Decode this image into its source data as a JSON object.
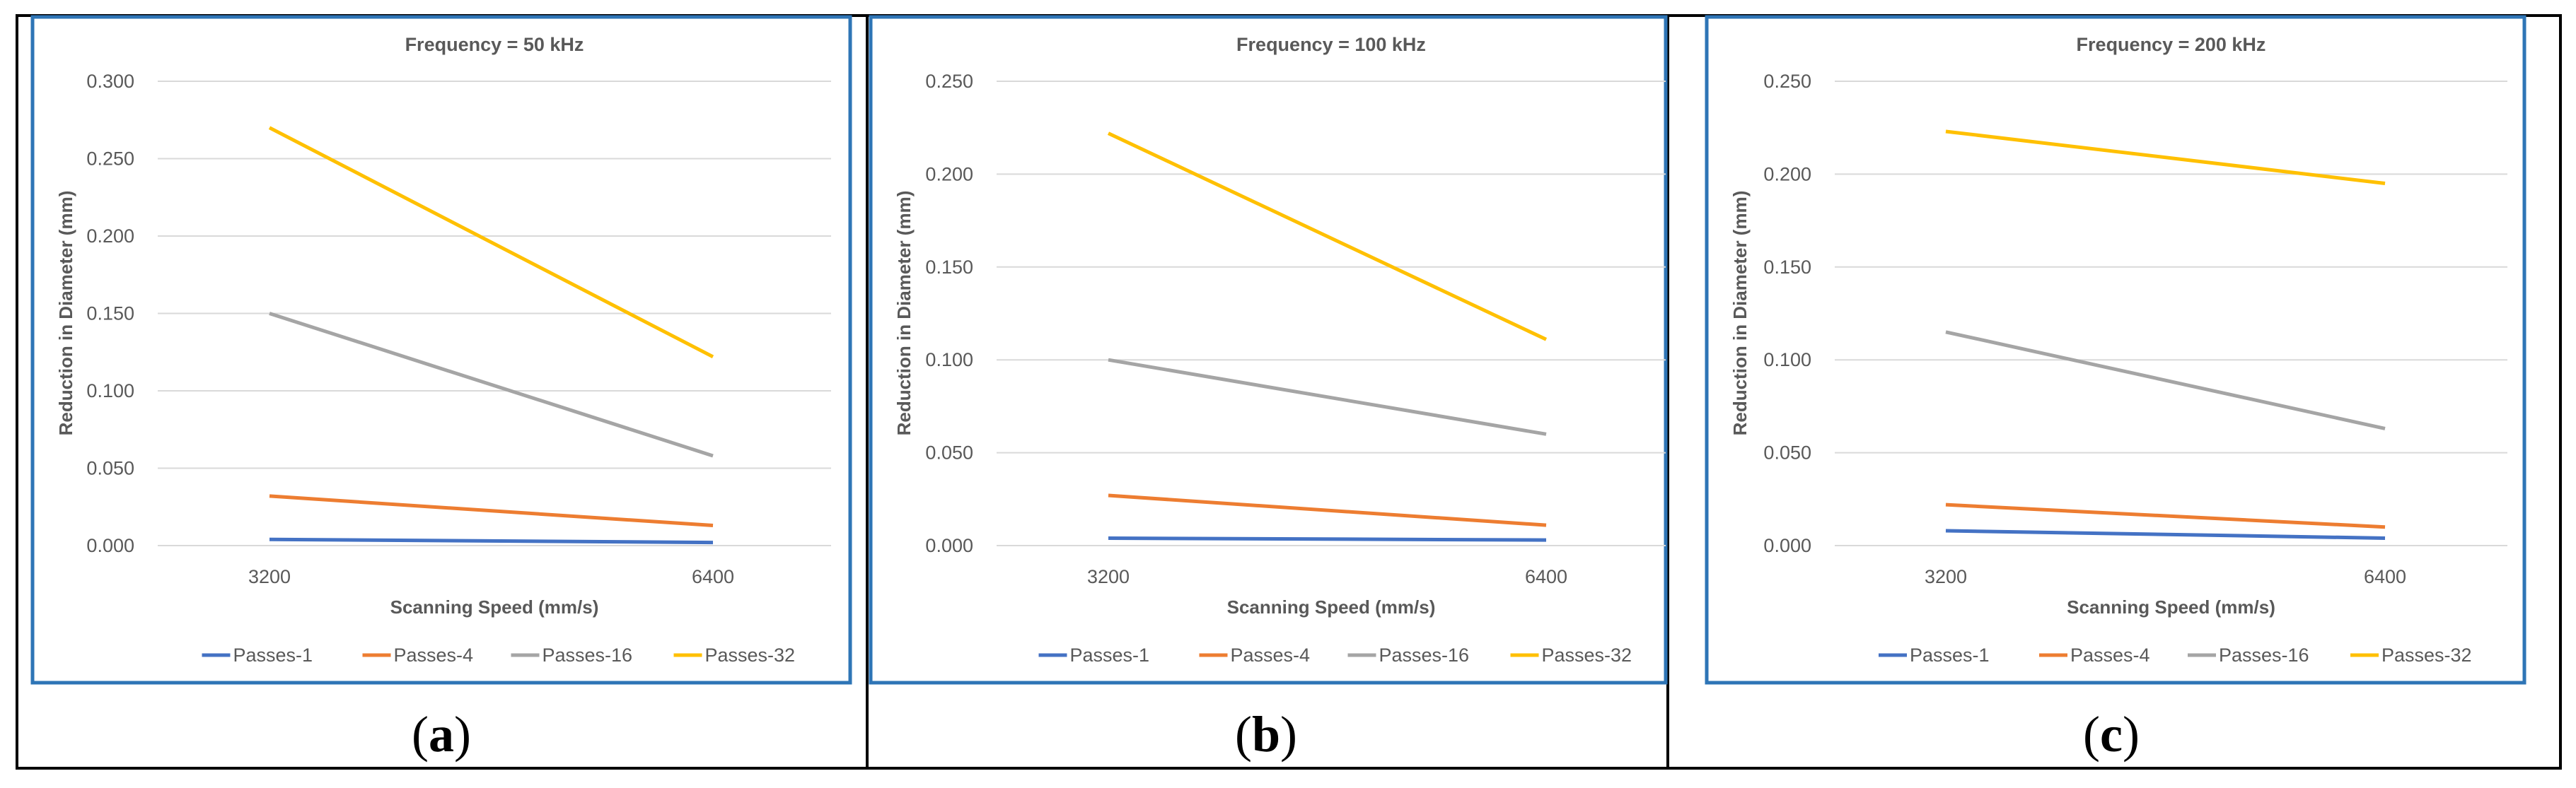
{
  "colors": {
    "border": "#000000",
    "chart_frame": "#2E75B6",
    "grid": "#D9D9D9",
    "text": "#595959",
    "series": {
      "Passes-1": "#4472C4",
      "Passes-4": "#ED7D31",
      "Passes-16": "#A5A5A5",
      "Passes-32": "#FFC000"
    }
  },
  "panels": [
    {
      "caption": {
        "open": "(",
        "letter": "a",
        "close": ")"
      }
    },
    {
      "caption": {
        "open": "(",
        "letter": "b",
        "close": ")"
      }
    },
    {
      "caption": {
        "open": "(",
        "letter": "c",
        "close": ")"
      }
    }
  ],
  "chart_data": [
    {
      "type": "line",
      "title": "Frequency = 50 kHz",
      "xlabel": "Scanning Speed (mm/s)",
      "ylabel": "Reduction in Diameter (mm)",
      "categories": [
        "3200",
        "6400"
      ],
      "ylim": [
        0,
        0.3
      ],
      "yticks": [
        "0.000",
        "0.050",
        "0.100",
        "0.150",
        "0.200",
        "0.250",
        "0.300"
      ],
      "grid": true,
      "legend": "bottom",
      "series": [
        {
          "name": "Passes-1",
          "values": [
            0.004,
            0.002
          ]
        },
        {
          "name": "Passes-4",
          "values": [
            0.032,
            0.013
          ]
        },
        {
          "name": "Passes-16",
          "values": [
            0.15,
            0.058
          ]
        },
        {
          "name": "Passes-32",
          "values": [
            0.27,
            0.122
          ]
        }
      ]
    },
    {
      "type": "line",
      "title": "Frequency = 100 kHz",
      "xlabel": "Scanning Speed (mm/s)",
      "ylabel": "Reduction in Diameter (mm)",
      "categories": [
        "3200",
        "6400"
      ],
      "ylim": [
        0,
        0.25
      ],
      "yticks": [
        "0.000",
        "0.050",
        "0.100",
        "0.150",
        "0.200",
        "0.250"
      ],
      "grid": true,
      "legend": "bottom",
      "series": [
        {
          "name": "Passes-1",
          "values": [
            0.004,
            0.003
          ]
        },
        {
          "name": "Passes-4",
          "values": [
            0.027,
            0.011
          ]
        },
        {
          "name": "Passes-16",
          "values": [
            0.1,
            0.06
          ]
        },
        {
          "name": "Passes-32",
          "values": [
            0.222,
            0.111
          ]
        }
      ]
    },
    {
      "type": "line",
      "title": "Frequency = 200 kHz",
      "xlabel": "Scanning Speed (mm/s)",
      "ylabel": "Reduction in Diameter (mm)",
      "categories": [
        "3200",
        "6400"
      ],
      "ylim": [
        0,
        0.25
      ],
      "yticks": [
        "0.000",
        "0.050",
        "0.100",
        "0.150",
        "0.200",
        "0.250"
      ],
      "grid": true,
      "legend": "bottom",
      "series": [
        {
          "name": "Passes-1",
          "values": [
            0.008,
            0.004
          ]
        },
        {
          "name": "Passes-4",
          "values": [
            0.022,
            0.01
          ]
        },
        {
          "name": "Passes-16",
          "values": [
            0.115,
            0.063
          ]
        },
        {
          "name": "Passes-32",
          "values": [
            0.223,
            0.195
          ]
        }
      ]
    }
  ]
}
